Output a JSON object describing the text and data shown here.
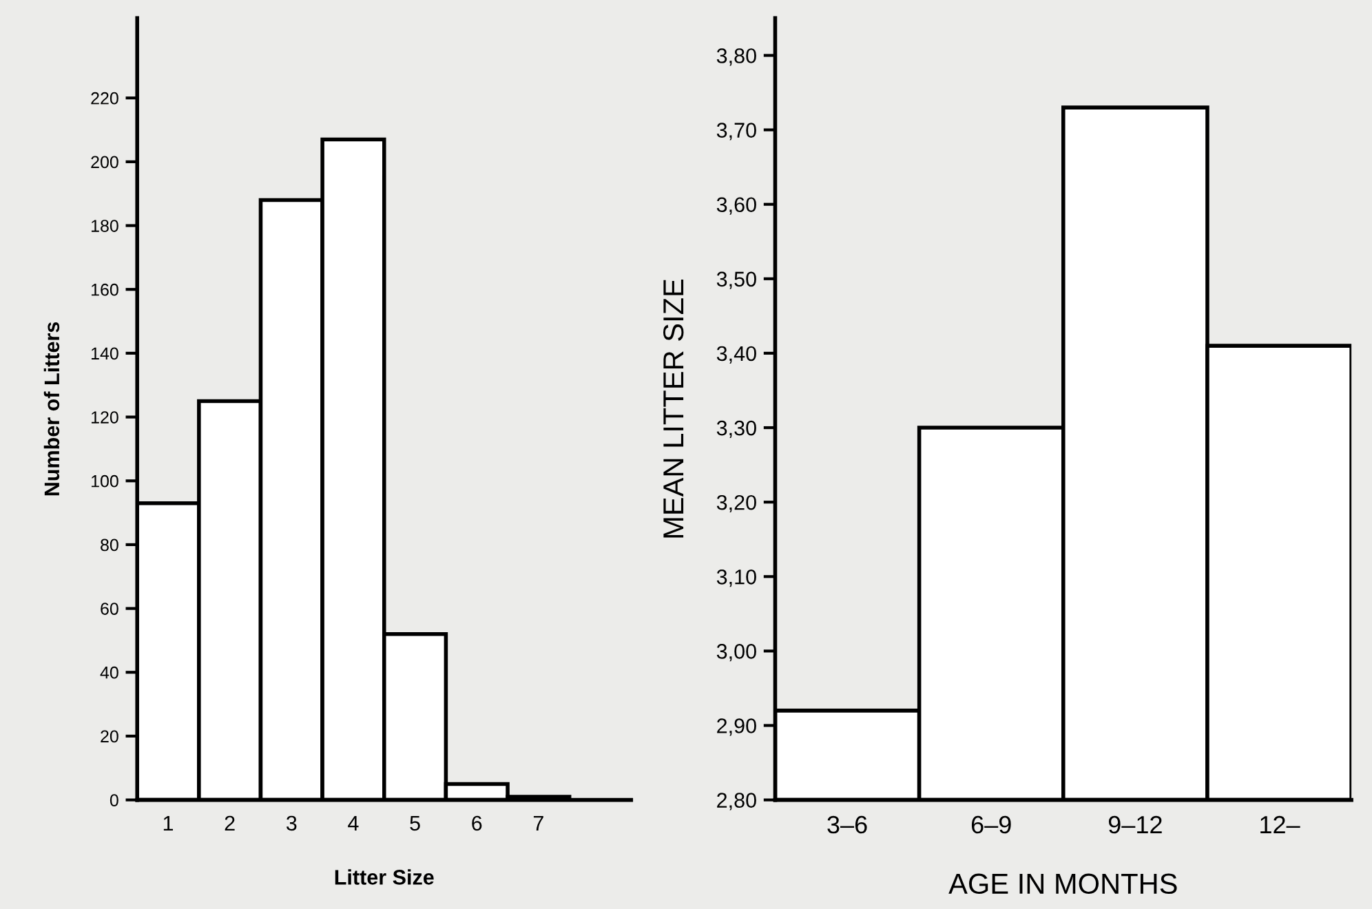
{
  "chart_data": [
    {
      "type": "bar",
      "xlabel": "Litter Size",
      "ylabel": "Number of Litters",
      "categories": [
        "1",
        "2",
        "3",
        "4",
        "5",
        "6",
        "7",
        null
      ],
      "values": [
        93,
        125,
        188,
        207,
        52,
        5,
        1,
        null
      ],
      "color": "#ffffff",
      "ylim": [
        0,
        245
      ],
      "yticks": [
        0,
        20,
        40,
        60,
        80,
        100,
        120,
        140,
        160,
        180,
        200,
        220
      ],
      "grid": false
    },
    {
      "type": "bar",
      "xlabel": "AGE IN MONTHS",
      "ylabel": "MEAN LITTER SIZE",
      "categories": [
        "3–6",
        "6–9",
        "9–12",
        "12–"
      ],
      "values": [
        2.92,
        3.3,
        3.73,
        3.41
      ],
      "color": "#ffffff",
      "ylim": [
        2.8,
        3.85
      ],
      "yticks": [
        {
          "value": 2.8,
          "label": "2,80"
        },
        {
          "value": 2.9,
          "label": "2,90"
        },
        {
          "value": 3.0,
          "label": "3,00"
        },
        {
          "value": 3.1,
          "label": "3,10"
        },
        {
          "value": 3.2,
          "label": "3,20"
        },
        {
          "value": 3.3,
          "label": "3,30"
        },
        {
          "value": 3.4,
          "label": "3,40"
        },
        {
          "value": 3.5,
          "label": "3,50"
        },
        {
          "value": 3.6,
          "label": "3,60"
        },
        {
          "value": 3.7,
          "label": "3,70"
        },
        {
          "value": 3.8,
          "label": "3,80"
        }
      ],
      "grid": false
    }
  ]
}
